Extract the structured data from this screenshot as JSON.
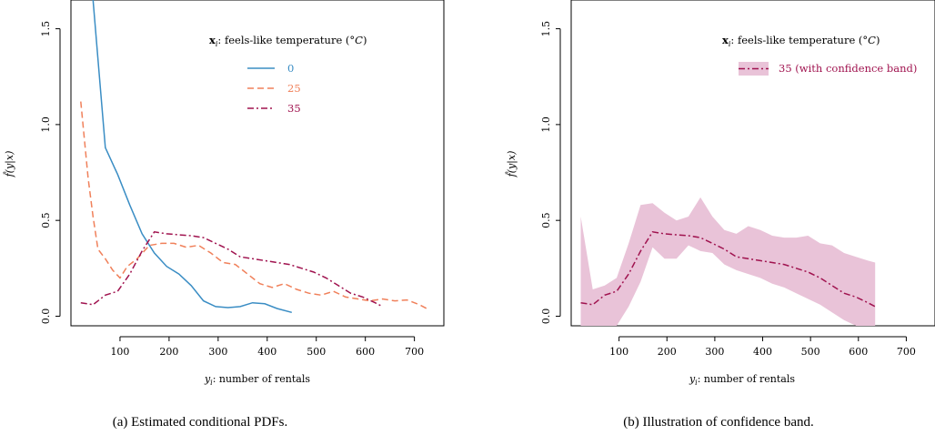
{
  "chart_data": [
    {
      "type": "line",
      "caption": "(a) Estimated conditional PDFs.",
      "xlabel": "y_i: number of rentals",
      "ylabel": "f̂(y|x)",
      "xlim": [
        0,
        760
      ],
      "ylim": [
        -0.05,
        1.65
      ],
      "xticks": [
        "100",
        "200",
        "300",
        "400",
        "500",
        "600",
        "700"
      ],
      "yticks": [
        "0.0",
        "0.5",
        "1.0",
        "1.5"
      ],
      "grid": false,
      "legend_title": "x_i: feels-like temperature (°C)",
      "legend_position": "top-right",
      "series": [
        {
          "name": "0",
          "color": "#3a8dc4",
          "dash": "solid",
          "x": [
            45,
            70,
            95,
            120,
            145,
            170,
            195,
            220,
            245,
            270,
            295,
            320,
            345,
            370,
            395,
            420,
            450
          ],
          "y": [
            1.65,
            0.88,
            0.74,
            0.58,
            0.43,
            0.33,
            0.26,
            0.22,
            0.16,
            0.08,
            0.05,
            0.045,
            0.05,
            0.07,
            0.065,
            0.04,
            0.02
          ]
        },
        {
          "name": "25",
          "color": "#f0805a",
          "dash": "dashed",
          "x": [
            20,
            35,
            45,
            55,
            70,
            85,
            100,
            115,
            135,
            160,
            185,
            210,
            235,
            260,
            285,
            310,
            335,
            360,
            385,
            410,
            435,
            460,
            485,
            510,
            535,
            560,
            585,
            610,
            635,
            660,
            685,
            710,
            725
          ],
          "y": [
            1.12,
            0.72,
            0.52,
            0.35,
            0.3,
            0.24,
            0.2,
            0.26,
            0.3,
            0.37,
            0.38,
            0.38,
            0.36,
            0.37,
            0.33,
            0.28,
            0.27,
            0.22,
            0.17,
            0.15,
            0.17,
            0.14,
            0.12,
            0.11,
            0.13,
            0.1,
            0.09,
            0.08,
            0.09,
            0.08,
            0.085,
            0.06,
            0.04
          ]
        },
        {
          "name": "35",
          "color": "#a0134f",
          "dash": "dashdot",
          "x": [
            20,
            45,
            70,
            95,
            120,
            145,
            170,
            195,
            220,
            245,
            270,
            295,
            320,
            345,
            370,
            395,
            420,
            445,
            470,
            495,
            520,
            545,
            570,
            595,
            620,
            635
          ],
          "y": [
            0.07,
            0.06,
            0.11,
            0.13,
            0.22,
            0.34,
            0.44,
            0.43,
            0.425,
            0.42,
            0.41,
            0.38,
            0.35,
            0.31,
            0.3,
            0.29,
            0.28,
            0.27,
            0.25,
            0.23,
            0.2,
            0.16,
            0.12,
            0.1,
            0.07,
            0.05
          ]
        }
      ]
    },
    {
      "type": "area",
      "caption": "(b) Illustration of confidence band.",
      "xlabel": "y_i: number of rentals",
      "ylabel": "f̂(y|x)",
      "xlim": [
        0,
        760
      ],
      "ylim": [
        -0.05,
        1.65
      ],
      "xticks": [
        "100",
        "200",
        "300",
        "400",
        "500",
        "600",
        "700"
      ],
      "yticks": [
        "0.0",
        "0.5",
        "1.0",
        "1.5"
      ],
      "grid": false,
      "legend_title": "x_i: feels-like temperature (°C)",
      "legend_position": "top-right",
      "band_color": "#e9c3d8",
      "series": [
        {
          "name": "35 (with confidence band)",
          "color": "#a0134f",
          "dash": "dashdot",
          "x": [
            20,
            45,
            70,
            95,
            120,
            145,
            170,
            195,
            220,
            245,
            270,
            295,
            320,
            345,
            370,
            395,
            420,
            445,
            470,
            495,
            520,
            545,
            570,
            595,
            620,
            635
          ],
          "y": [
            0.07,
            0.06,
            0.11,
            0.13,
            0.22,
            0.34,
            0.44,
            0.43,
            0.425,
            0.42,
            0.41,
            0.38,
            0.35,
            0.31,
            0.3,
            0.29,
            0.28,
            0.27,
            0.25,
            0.23,
            0.2,
            0.16,
            0.12,
            0.1,
            0.07,
            0.05
          ],
          "lower": [
            -0.05,
            -0.05,
            -0.05,
            -0.05,
            0.05,
            0.18,
            0.36,
            0.3,
            0.3,
            0.37,
            0.34,
            0.33,
            0.27,
            0.24,
            0.22,
            0.2,
            0.17,
            0.15,
            0.12,
            0.09,
            0.06,
            0.02,
            -0.02,
            -0.05,
            -0.05,
            -0.05
          ],
          "upper": [
            0.52,
            0.14,
            0.16,
            0.2,
            0.38,
            0.58,
            0.59,
            0.54,
            0.5,
            0.52,
            0.62,
            0.52,
            0.45,
            0.43,
            0.47,
            0.45,
            0.42,
            0.41,
            0.41,
            0.42,
            0.38,
            0.37,
            0.33,
            0.31,
            0.29,
            0.28
          ]
        }
      ]
    }
  ]
}
